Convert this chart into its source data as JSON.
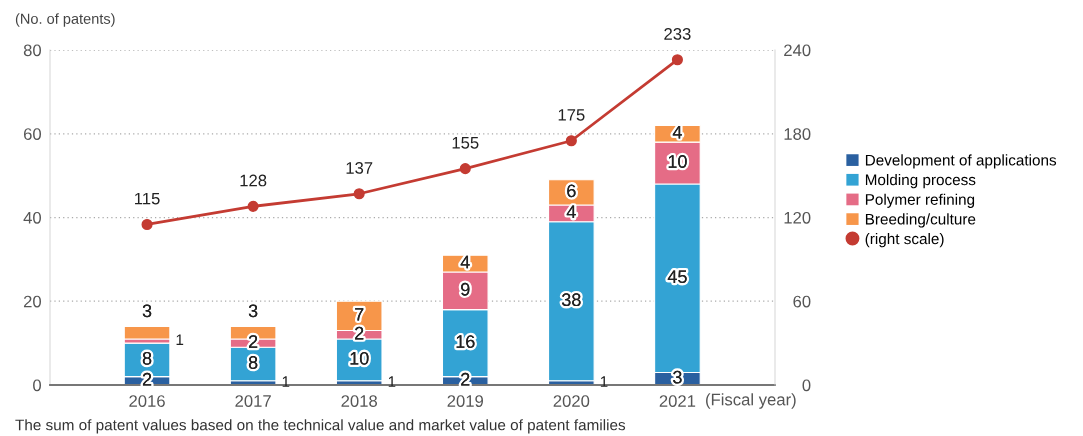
{
  "chart_data": {
    "type": "bar",
    "stacked": true,
    "categories": [
      "2016",
      "2017",
      "2018",
      "2019",
      "2020",
      "2021"
    ],
    "series": [
      {
        "name": "Development of applications",
        "color": "#2a60a0",
        "values": [
          2,
          1,
          1,
          2,
          1,
          3
        ]
      },
      {
        "name": "Molding process",
        "color": "#33a3d4",
        "values": [
          8,
          8,
          10,
          16,
          38,
          45
        ]
      },
      {
        "name": "Polymer refining",
        "color": "#e56c86",
        "values": [
          1,
          2,
          2,
          9,
          4,
          10
        ]
      },
      {
        "name": "Breeding/culture",
        "color": "#f7964a",
        "values": [
          3,
          3,
          7,
          4,
          6,
          4
        ]
      },
      {
        "name": "(right scale)",
        "type": "line",
        "axis": "y2",
        "color": "#c43b32",
        "values": [
          115,
          128,
          137,
          155,
          175,
          233
        ]
      }
    ],
    "ylim": [
      0,
      80
    ],
    "yticks": [
      0,
      20,
      40,
      60,
      80
    ],
    "y2lim": [
      0,
      240
    ],
    "y2ticks": [
      0,
      60,
      120,
      180,
      240
    ],
    "ylabel": "(No. of patents)",
    "xlabel": "(Fiscal year)",
    "annotations": [
      "The sum of patent values based on the technical value and market value of patent families"
    ],
    "data_labels": true,
    "grid": "y",
    "legend": "right",
    "marker": "circle",
    "line_style": "solid"
  }
}
